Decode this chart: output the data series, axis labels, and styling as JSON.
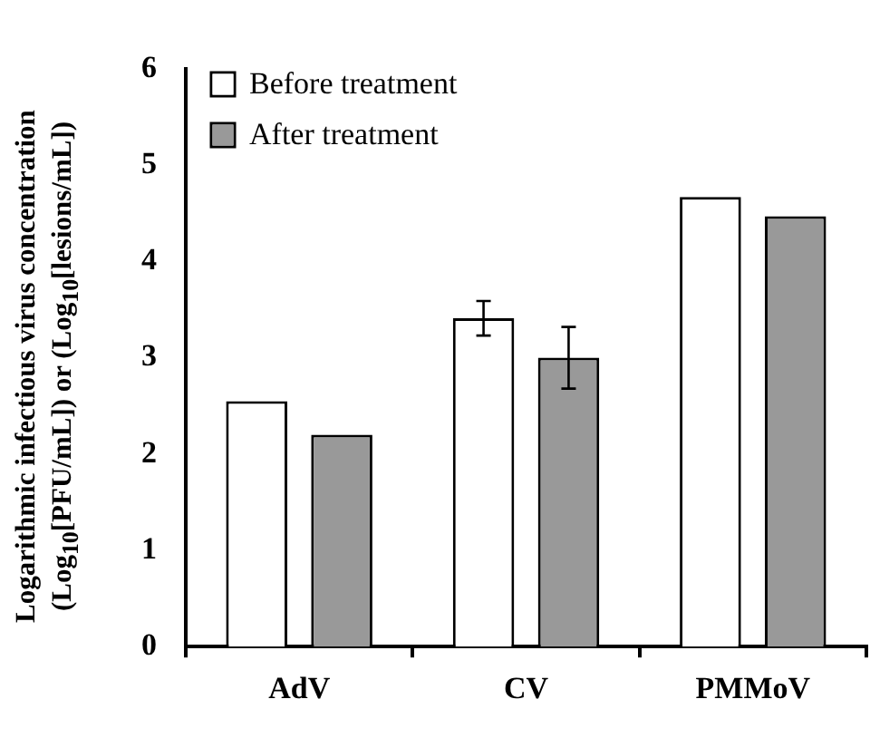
{
  "chart_data": {
    "type": "bar",
    "ylabel": "Logarithmic infectious virus concentration (Log$_{10}$[PFU/mL]) or (Log$_{10}$[lesions/mL])",
    "categories": [
      "AdV",
      "CV",
      "PMMoV"
    ],
    "series": [
      {
        "name": "Before treatment",
        "color": "#ffffff",
        "values": [
          2.55,
          3.41,
          4.67
        ],
        "errors": [
          null,
          0.18,
          null
        ]
      },
      {
        "name": "After treatment",
        "color": "#999999",
        "values": [
          2.2,
          3.0,
          4.47
        ],
        "errors": [
          null,
          0.32,
          null
        ]
      }
    ],
    "ylim": [
      0,
      6
    ],
    "yticks": [
      0,
      1,
      2,
      3,
      4,
      5,
      6
    ],
    "grid": false,
    "legend": "top left"
  }
}
